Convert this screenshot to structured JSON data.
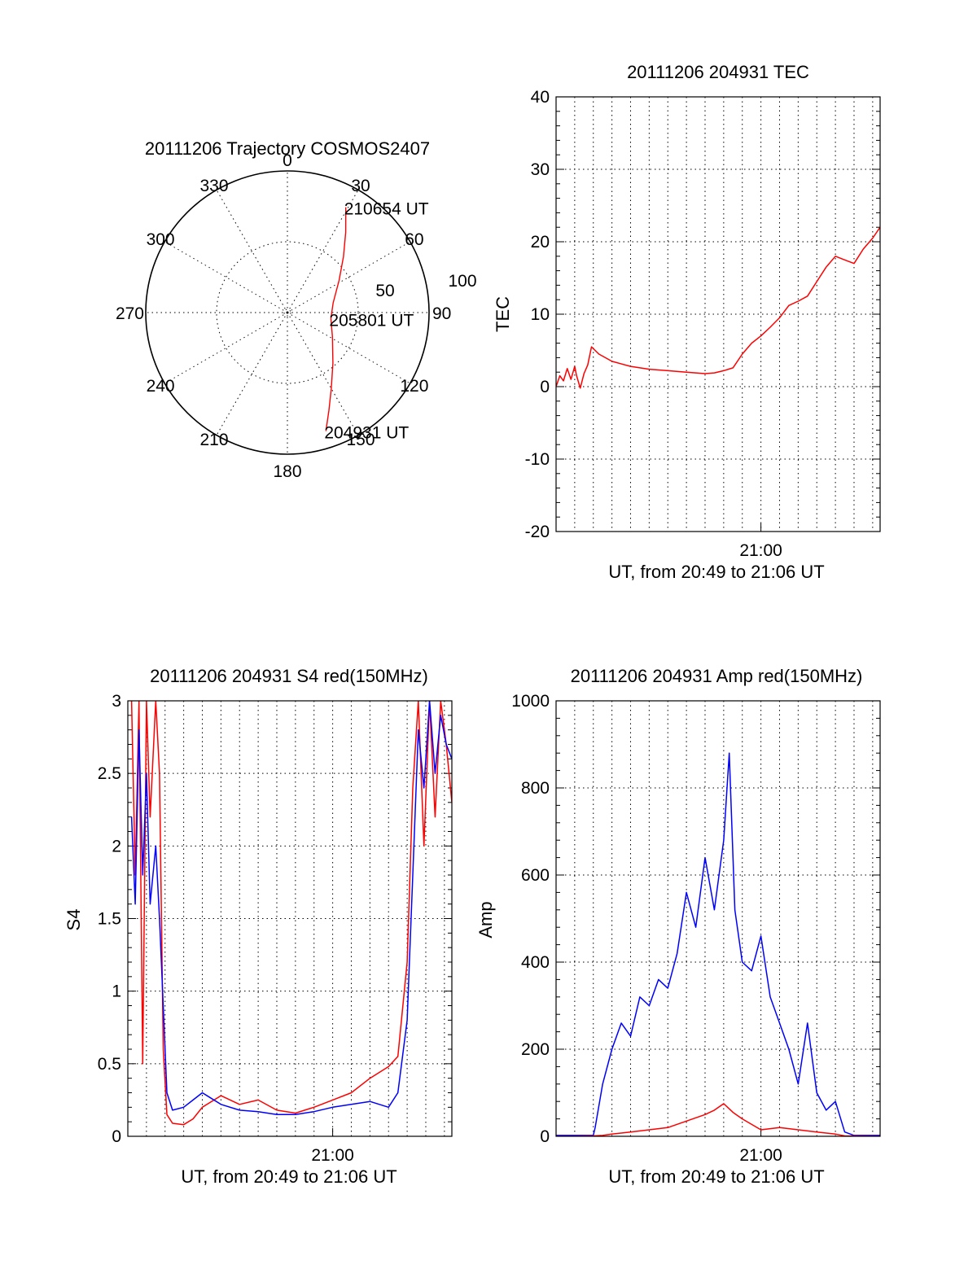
{
  "colors": {
    "red": "#ff0000",
    "blue": "#0000ff",
    "axis": "#000000"
  },
  "chart_data": [
    {
      "id": "trajectory",
      "type": "polar",
      "title": "20111206 Trajectory COSMOS2407",
      "angle_labels": [
        "0",
        "30",
        "60",
        "90",
        "120",
        "150",
        "180",
        "210",
        "240",
        "270",
        "300",
        "330"
      ],
      "radial_labels": [
        "50",
        "100"
      ],
      "elevation_range": [
        0,
        100
      ],
      "series": [
        {
          "color": "red",
          "points": [
            {
              "az": 162,
              "r": 88
            },
            {
              "az": 157,
              "r": 75
            },
            {
              "az": 150,
              "r": 62
            },
            {
              "az": 138,
              "r": 48
            },
            {
              "az": 118,
              "r": 36
            },
            {
              "az": 98,
              "r": 31
            },
            {
              "az": 78,
              "r": 33
            },
            {
              "az": 58,
              "r": 43
            },
            {
              "az": 45,
              "r": 56
            },
            {
              "az": 36,
              "r": 70
            },
            {
              "az": 29,
              "r": 85
            }
          ]
        }
      ],
      "annotations": [
        {
          "text": "210654 UT",
          "az": 29,
          "r": 85
        },
        {
          "text": "205801 UT",
          "az": 98,
          "r": 31
        },
        {
          "text": "204931 UT",
          "az": 162,
          "r": 88
        }
      ]
    },
    {
      "id": "tec",
      "type": "line",
      "title": "20111206 204931 TEC",
      "ylabel": "TEC",
      "xlabel": "UT, from 20:49 to 21:06 UT",
      "x_tick_label": "21:00",
      "yticks": [
        "-20",
        "-10",
        "0",
        "10",
        "20",
        "30",
        "40"
      ],
      "ylim": [
        -20,
        40
      ],
      "xlim_minutes": [
        0,
        17.4
      ],
      "series": [
        {
          "color": "red",
          "x": [
            0,
            0.2,
            0.4,
            0.6,
            0.8,
            1.0,
            1.1,
            1.3,
            1.5,
            1.7,
            1.9,
            2.3,
            3,
            4,
            5,
            6,
            7,
            8,
            8.5,
            9,
            9.5,
            10,
            10.5,
            11,
            11.5,
            12,
            12.5,
            13,
            13.5,
            14,
            14.5,
            15,
            15.5,
            16,
            16.5,
            17,
            17.4
          ],
          "y": [
            0,
            1.5,
            0.8,
            2.5,
            1.0,
            2.8,
            1.5,
            -0.2,
            1.8,
            3.0,
            5.5,
            4.5,
            3.5,
            2.8,
            2.4,
            2.2,
            2.0,
            1.8,
            1.9,
            2.2,
            2.6,
            4.5,
            6.0,
            7.0,
            8.2,
            9.5,
            11.2,
            11.8,
            12.5,
            14.5,
            16.5,
            18.0,
            17.5,
            17.0,
            19.0,
            20.5,
            22.0
          ]
        }
      ]
    },
    {
      "id": "s4",
      "type": "line",
      "title": "20111206 204931 S4 red(150MHz)",
      "ylabel": "S4",
      "xlabel": "UT, from 20:49 to 21:06 UT",
      "x_tick_label": "21:00",
      "yticks": [
        "0",
        "0.5",
        "1",
        "1.5",
        "2",
        "2.5",
        "3"
      ],
      "ylim": [
        0,
        3
      ],
      "xlim_minutes": [
        0,
        17.4
      ],
      "series": [
        {
          "color": "red",
          "x": [
            0.2,
            0.4,
            0.6,
            0.8,
            1.0,
            1.2,
            1.5,
            1.7,
            1.9,
            2.1,
            2.4,
            3,
            3.5,
            4,
            5,
            6,
            7,
            8,
            9,
            10,
            11,
            12,
            13,
            14,
            14.5,
            15,
            15.3,
            15.6,
            15.9,
            16.2,
            16.5,
            16.8,
            17.1,
            17.4
          ],
          "y": [
            3.0,
            1.8,
            3.0,
            0.5,
            3.0,
            2.2,
            3.0,
            2.5,
            0.6,
            0.15,
            0.09,
            0.08,
            0.12,
            0.2,
            0.28,
            0.22,
            0.25,
            0.18,
            0.16,
            0.2,
            0.25,
            0.3,
            0.4,
            0.48,
            0.55,
            1.2,
            2.4,
            3.0,
            2.0,
            3.0,
            2.2,
            3.0,
            2.7,
            2.3
          ]
        },
        {
          "color": "blue",
          "x": [
            0.2,
            0.4,
            0.6,
            0.8,
            1.0,
            1.2,
            1.5,
            1.7,
            1.9,
            2.1,
            2.4,
            3,
            3.5,
            4,
            5,
            6,
            7,
            8,
            9,
            10,
            11,
            12,
            13,
            14,
            14.5,
            15,
            15.3,
            15.6,
            15.9,
            16.2,
            16.5,
            16.8,
            17.1,
            17.4
          ],
          "y": [
            2.2,
            1.6,
            2.8,
            1.8,
            2.5,
            1.6,
            2.0,
            1.5,
            0.9,
            0.3,
            0.18,
            0.2,
            0.25,
            0.3,
            0.22,
            0.18,
            0.17,
            0.15,
            0.15,
            0.17,
            0.2,
            0.22,
            0.24,
            0.2,
            0.3,
            0.8,
            1.8,
            2.8,
            2.4,
            3.0,
            2.5,
            2.9,
            2.7,
            2.6
          ]
        }
      ]
    },
    {
      "id": "amp",
      "type": "line",
      "title": "20111206 204931 Amp red(150MHz)",
      "ylabel": "Amp",
      "xlabel": "UT, from 20:49 to 21:06 UT",
      "x_tick_label": "21:00",
      "yticks": [
        "0",
        "200",
        "400",
        "600",
        "800",
        "1000"
      ],
      "ylim": [
        0,
        1000
      ],
      "xlim_minutes": [
        0,
        17.4
      ],
      "series": [
        {
          "color": "blue",
          "x": [
            0,
            1,
            2,
            2.1,
            2.5,
            3,
            3.5,
            4,
            4.5,
            5,
            5.5,
            6,
            6.5,
            7,
            7.5,
            8,
            8.5,
            9,
            9.3,
            9.6,
            10,
            10.5,
            11,
            11.5,
            12,
            12.5,
            13,
            13.5,
            14,
            14.5,
            15,
            15.5,
            16,
            17.4
          ],
          "y": [
            2,
            2,
            2,
            20,
            120,
            200,
            260,
            230,
            320,
            300,
            360,
            340,
            420,
            560,
            480,
            640,
            520,
            680,
            880,
            520,
            400,
            380,
            460,
            320,
            260,
            200,
            120,
            260,
            100,
            60,
            80,
            10,
            2,
            2
          ]
        },
        {
          "color": "red",
          "x": [
            0,
            1,
            2,
            2.5,
            3,
            4,
            5,
            6,
            7,
            8,
            8.5,
            9,
            9.5,
            10,
            11,
            12,
            13,
            14,
            15,
            15.5,
            17.4
          ],
          "y": [
            0,
            0,
            1,
            2,
            5,
            10,
            15,
            20,
            35,
            50,
            60,
            75,
            55,
            40,
            15,
            20,
            15,
            10,
            5,
            1,
            0
          ]
        }
      ]
    }
  ]
}
